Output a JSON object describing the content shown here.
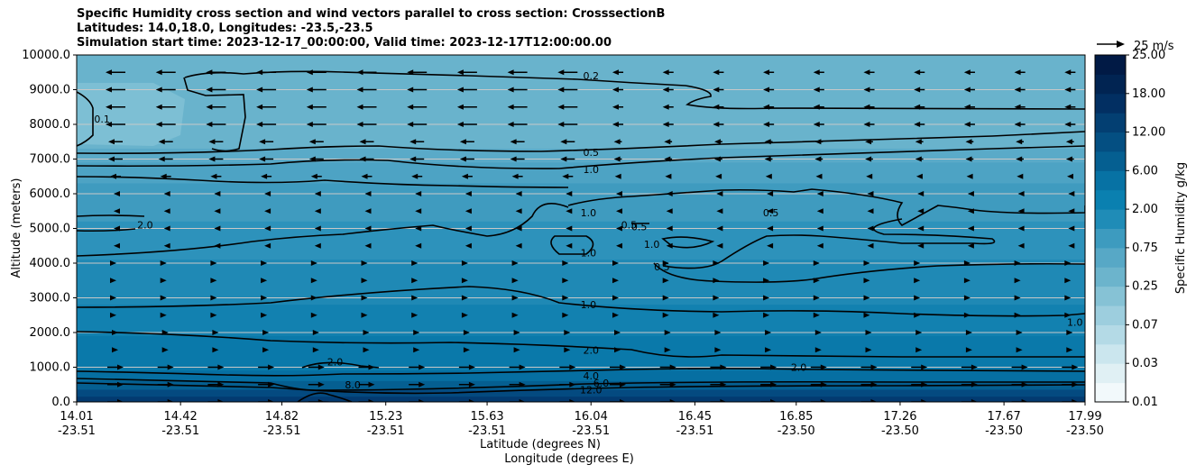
{
  "chart_data": {
    "type": "contour",
    "title_lines": [
      "Specific Humidity cross section and wind vectors parallel to cross section: CrosssectionB",
      "Latitudes: 14.0,18.0, Longitudes: -23.5,-23.5",
      "Simulation start time: 2023-12-17_00:00:00, Valid time: 2023-12-17T12:00:00.00"
    ],
    "xlabel": "Latitude (degrees N)",
    "xlabel2": "Longitude (degrees E)",
    "ylabel": "Altitude (meters)",
    "ylim": [
      0,
      10000
    ],
    "y_ticks": [
      "0.0",
      "1000.0",
      "2000.0",
      "3000.0",
      "4000.0",
      "5000.0",
      "6000.0",
      "7000.0",
      "8000.0",
      "9000.0",
      "10000.0"
    ],
    "x_ticks_lat": [
      "14.01",
      "14.42",
      "14.82",
      "15.23",
      "15.63",
      "16.04",
      "16.45",
      "16.85",
      "17.26",
      "17.67",
      "17.99"
    ],
    "x_ticks_lon": [
      "-23.51",
      "-23.51",
      "-23.51",
      "-23.51",
      "-23.51",
      "-23.51",
      "-23.51",
      "-23.50",
      "-23.50",
      "-23.50",
      "-23.50"
    ],
    "colorbar": {
      "label": "Specific Humidity g/kg",
      "levels": [
        0.01,
        0.02,
        0.03,
        0.05,
        0.07,
        0.1,
        0.25,
        0.5,
        0.75,
        1.0,
        2.0,
        4.0,
        6.0,
        9.0,
        12.0,
        15.0,
        18.0,
        21.0,
        25.0
      ],
      "tick_labels": [
        "0.01",
        "0.03",
        "0.07",
        "0.25",
        "0.75",
        "2.00",
        "6.00",
        "12.00",
        "18.00",
        "25.00"
      ],
      "colors": [
        "#f2f9fb",
        "#e0f0f4",
        "#cbe6ee",
        "#b4dae6",
        "#9dcede",
        "#86c2d5",
        "#6cb4cc",
        "#57a8c6",
        "#3d9bbf",
        "#1f8cb7",
        "#0a80b0",
        "#0772a4",
        "#055f91",
        "#044f82",
        "#033f72",
        "#022f62",
        "#012452",
        "#011a45"
      ]
    },
    "quiver_key": "25 m/s",
    "contour_labels": [
      {
        "text": "0.2",
        "lat": 16.04,
        "alt": 9400
      },
      {
        "text": "0.1",
        "lat": 14.11,
        "alt": 8150
      },
      {
        "text": "0.5",
        "lat": 16.04,
        "alt": 7200
      },
      {
        "text": "1.0",
        "lat": 16.04,
        "alt": 6700
      },
      {
        "text": "2.0",
        "lat": 14.28,
        "alt": 5100
      },
      {
        "text": "1.0",
        "lat": 16.03,
        "alt": 5450
      },
      {
        "text": "0.5",
        "lat": 16.19,
        "alt": 5100
      },
      {
        "text": "0.5",
        "lat": 16.23,
        "alt": 5050
      },
      {
        "text": "0.5",
        "lat": 16.75,
        "alt": 5450
      },
      {
        "text": "1.0",
        "lat": 16.03,
        "alt": 4300
      },
      {
        "text": "1.0",
        "lat": 16.28,
        "alt": 4550
      },
      {
        "text": "0.5",
        "lat": 16.32,
        "alt": 3900
      },
      {
        "text": "1.0",
        "lat": 16.03,
        "alt": 2800
      },
      {
        "text": "1.0",
        "lat": 17.95,
        "alt": 2300
      },
      {
        "text": "2.0",
        "lat": 16.04,
        "alt": 1500
      },
      {
        "text": "2.0",
        "lat": 15.03,
        "alt": 1150
      },
      {
        "text": "2.0",
        "lat": 16.86,
        "alt": 1000
      },
      {
        "text": "4.0",
        "lat": 16.04,
        "alt": 750
      },
      {
        "text": "8.0",
        "lat": 15.1,
        "alt": 500
      },
      {
        "text": "6.0",
        "lat": 16.08,
        "alt": 550
      },
      {
        "text": "12.0",
        "lat": 16.04,
        "alt": 350
      }
    ]
  }
}
